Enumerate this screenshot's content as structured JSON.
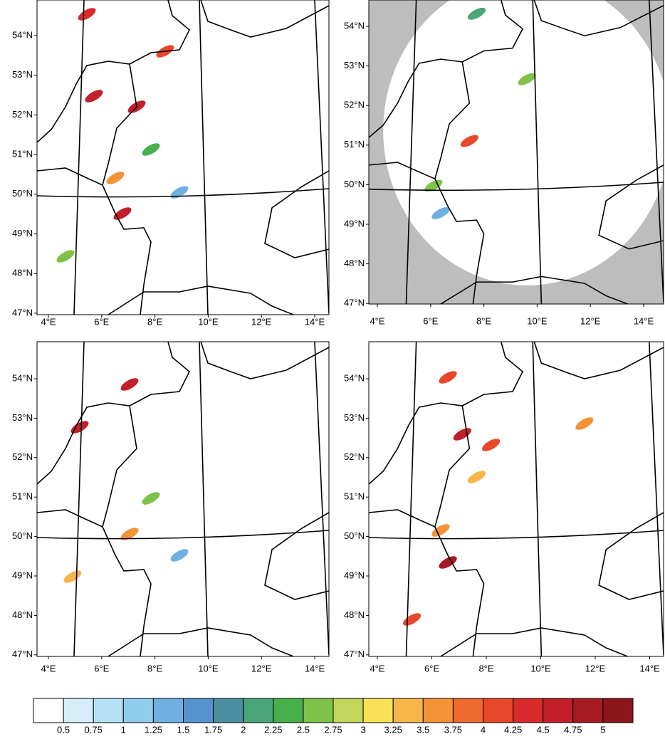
{
  "panels": [
    {
      "lat_labels": [
        "54°N",
        "53°N",
        "52°N",
        "51°N",
        "50°N",
        "49°N",
        "48°N",
        "47°N"
      ],
      "lon_labels": [
        "4°E",
        "6°E",
        "8°E",
        "10°E",
        "12°E",
        "14°E"
      ]
    },
    {
      "lat_labels": [
        "54°N",
        "53°N",
        "52°N",
        "51°N",
        "50°N",
        "49°N",
        "48°N",
        "47°N"
      ],
      "lon_labels": [
        "4°E",
        "6°E",
        "8°E",
        "10°E",
        "12°E",
        "14°E"
      ]
    },
    {
      "lat_labels": [
        "54°N",
        "53°N",
        "52°N",
        "51°N",
        "50°N",
        "49°N",
        "48°N",
        "47°N"
      ],
      "lon_labels": [
        "4°E",
        "6°E",
        "8°E",
        "10°E",
        "12°E",
        "14°E"
      ]
    },
    {
      "lat_labels": [
        "54°N",
        "53°N",
        "52°N",
        "51°N",
        "50°N",
        "49°N",
        "48°N",
        "47°N"
      ],
      "lon_labels": [
        "4°E",
        "6°E",
        "8°E",
        "10°E",
        "12°E",
        "14°E"
      ]
    }
  ],
  "colorbar": {
    "labels": [
      "0.5",
      "0.75",
      "1",
      "1.25",
      "1.5",
      "1.75",
      "2",
      "2.25",
      "2.5",
      "2.75",
      "3",
      "3.25",
      "3.5",
      "3.75",
      "4",
      "4.25",
      "4.5",
      "4.75",
      "5"
    ],
    "colors": [
      "#ffffff",
      "#d6eefa",
      "#b5e0f5",
      "#8fcdee",
      "#6eb1e0",
      "#5593cf",
      "#4a8fa0",
      "#4aa57a",
      "#48b04a",
      "#7fc24a",
      "#c2d65a",
      "#f8e155",
      "#f8b64a",
      "#f49238",
      "#ef6a2e",
      "#e8472a",
      "#d92b2b",
      "#c21f2a",
      "#a81a22",
      "#8c1519"
    ]
  }
}
